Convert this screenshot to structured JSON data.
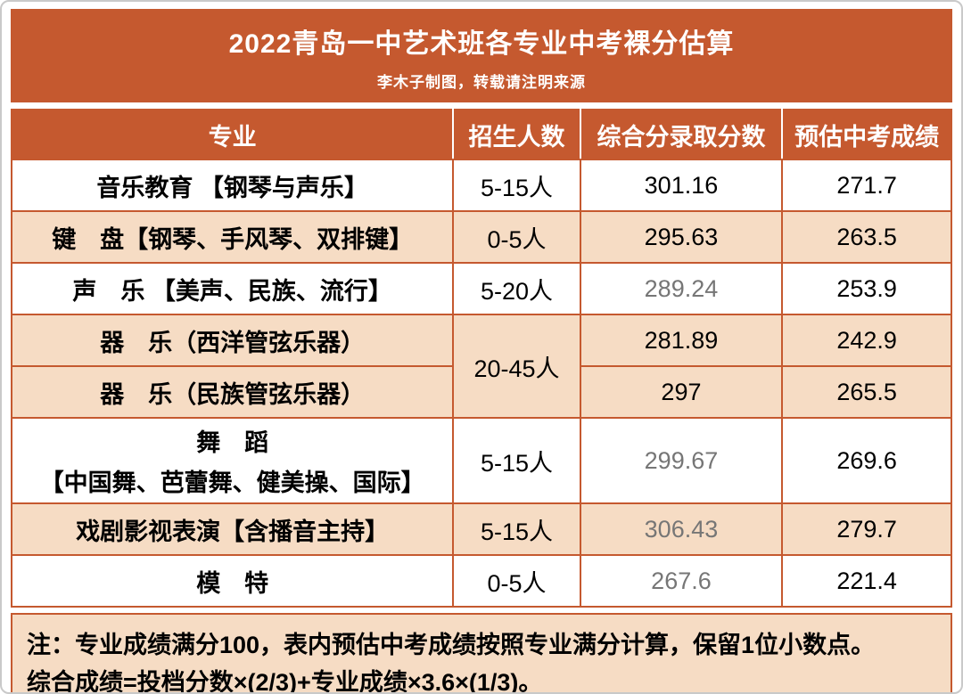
{
  "header": {
    "title": "2022青岛一中艺术班各专业中考裸分估算",
    "subtitle": "李木子制图，转载请注明来源"
  },
  "chart_data": {
    "type": "table",
    "title": "2022青岛一中艺术班各专业中考裸分估算",
    "columns": [
      "专业",
      "招生人数",
      "综合分录取分数",
      "预估中考成绩"
    ],
    "rows": [
      {
        "major": "音乐教育 【钢琴与声乐】",
        "quota": "5-15人",
        "score": "301.16",
        "exam": "271.7"
      },
      {
        "major": "键　盘【钢琴、手风琴、双排键】",
        "quota": "0-5人",
        "score": "295.63",
        "exam": "263.5"
      },
      {
        "major": "声　乐 【美声、民族、流行】",
        "quota": "5-20人",
        "score": "289.24",
        "exam": "253.9"
      },
      {
        "major": "器　乐（西洋管弦乐器）",
        "quota": "20-45人",
        "score": "281.89",
        "exam": "242.9"
      },
      {
        "major": "器　乐（民族管弦乐器）",
        "quota": "",
        "score": "297",
        "exam": "265.5"
      },
      {
        "major": "舞　蹈",
        "major2": "【中国舞、芭蕾舞、健美操、国际】",
        "quota": "5-15人",
        "score": "299.67",
        "exam": "269.6"
      },
      {
        "major": "戏剧影视表演【含播音主持】",
        "quota": "5-15人",
        "score": "306.43",
        "exam": "279.7"
      },
      {
        "major": "模　特",
        "quota": "0-5人",
        "score": "267.6",
        "exam": "221.4"
      }
    ]
  },
  "notes": {
    "line1": "注：专业成绩满分100，表内预估中考成绩按照专业满分计算，保留1位小数点。",
    "line2": "综合成绩=投档分数×(2/3)+专业成绩×3.6×(1/3)。"
  },
  "colors": {
    "banner": "#c5592f",
    "row_alt": "#f6dcc4",
    "border": "#c5592f",
    "muted_text": "#767676",
    "header_text": "#ffffff"
  }
}
